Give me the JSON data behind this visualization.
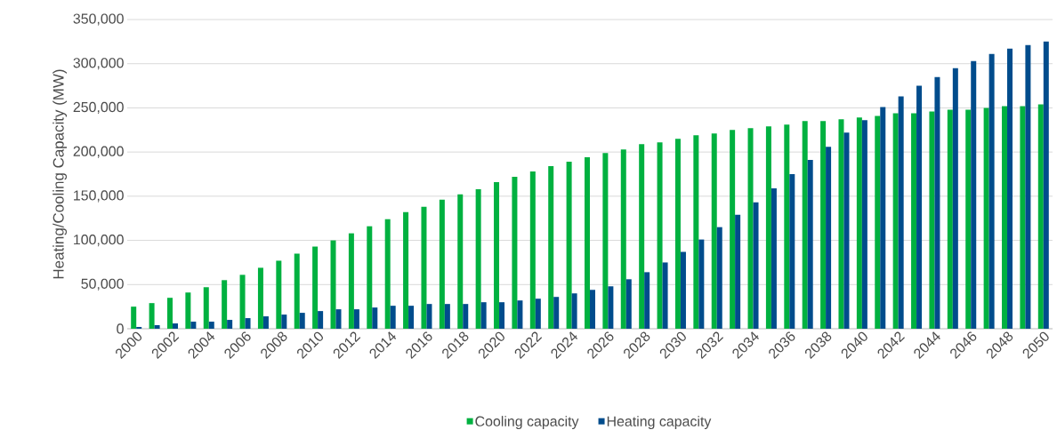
{
  "chart_data": {
    "type": "bar",
    "ylabel": "Heating/Cooling Capacity (MW)",
    "categories": [
      "2000",
      null,
      "2002",
      null,
      "2004",
      null,
      "2006",
      null,
      "2008",
      null,
      "2010",
      null,
      "2012",
      null,
      "2014",
      null,
      "2016",
      null,
      "2018",
      null,
      "2020",
      null,
      "2022",
      null,
      "2024",
      null,
      "2026",
      null,
      "2028",
      null,
      "2030",
      null,
      "2032",
      null,
      "2034",
      null,
      "2036",
      null,
      "2038",
      null,
      "2040",
      null,
      "2042",
      null,
      "2044",
      null,
      "2046",
      null,
      "2048",
      null,
      "2050"
    ],
    "series": [
      {
        "name": "Cooling capacity",
        "color": "#00b140",
        "values": [
          25000,
          29000,
          35000,
          41000,
          47000,
          55000,
          61000,
          69000,
          77000,
          85000,
          93000,
          100000,
          108000,
          116000,
          124000,
          132000,
          138000,
          146000,
          152000,
          158000,
          166000,
          172000,
          178000,
          184000,
          189000,
          194000,
          199000,
          203000,
          209000,
          211000,
          215000,
          219000,
          221000,
          225000,
          227000,
          229000,
          231000,
          235000,
          235000,
          237000,
          239000,
          241000,
          244000,
          244000,
          246000,
          248000,
          248000,
          250000,
          252000,
          252000,
          254000
        ]
      },
      {
        "name": "Heating capacity",
        "color": "#004c8c",
        "values": [
          2000,
          4000,
          6000,
          8000,
          8000,
          10000,
          12000,
          14000,
          16000,
          18000,
          20000,
          22000,
          22000,
          24000,
          26000,
          26000,
          28000,
          28000,
          28000,
          30000,
          30000,
          32000,
          34000,
          36000,
          40000,
          44000,
          48000,
          56000,
          64000,
          75000,
          87000,
          101000,
          115000,
          129000,
          143000,
          159000,
          175000,
          191000,
          206000,
          222000,
          236000,
          251000,
          263000,
          275000,
          285000,
          295000,
          303000,
          311000,
          317000,
          321000,
          325000
        ]
      }
    ],
    "ylim": [
      0,
      350000
    ],
    "yticks": [
      {
        "value": 0,
        "label": "0"
      },
      {
        "value": 50000,
        "label": "50,000"
      },
      {
        "value": 100000,
        "label": "100,000"
      },
      {
        "value": 150000,
        "label": "150,000"
      },
      {
        "value": 200000,
        "label": "200,000"
      },
      {
        "value": 250000,
        "label": "250,000"
      },
      {
        "value": 300000,
        "label": "300,000"
      },
      {
        "value": 350000,
        "label": "350,000"
      }
    ],
    "grid": "y",
    "legend": "bottom"
  }
}
